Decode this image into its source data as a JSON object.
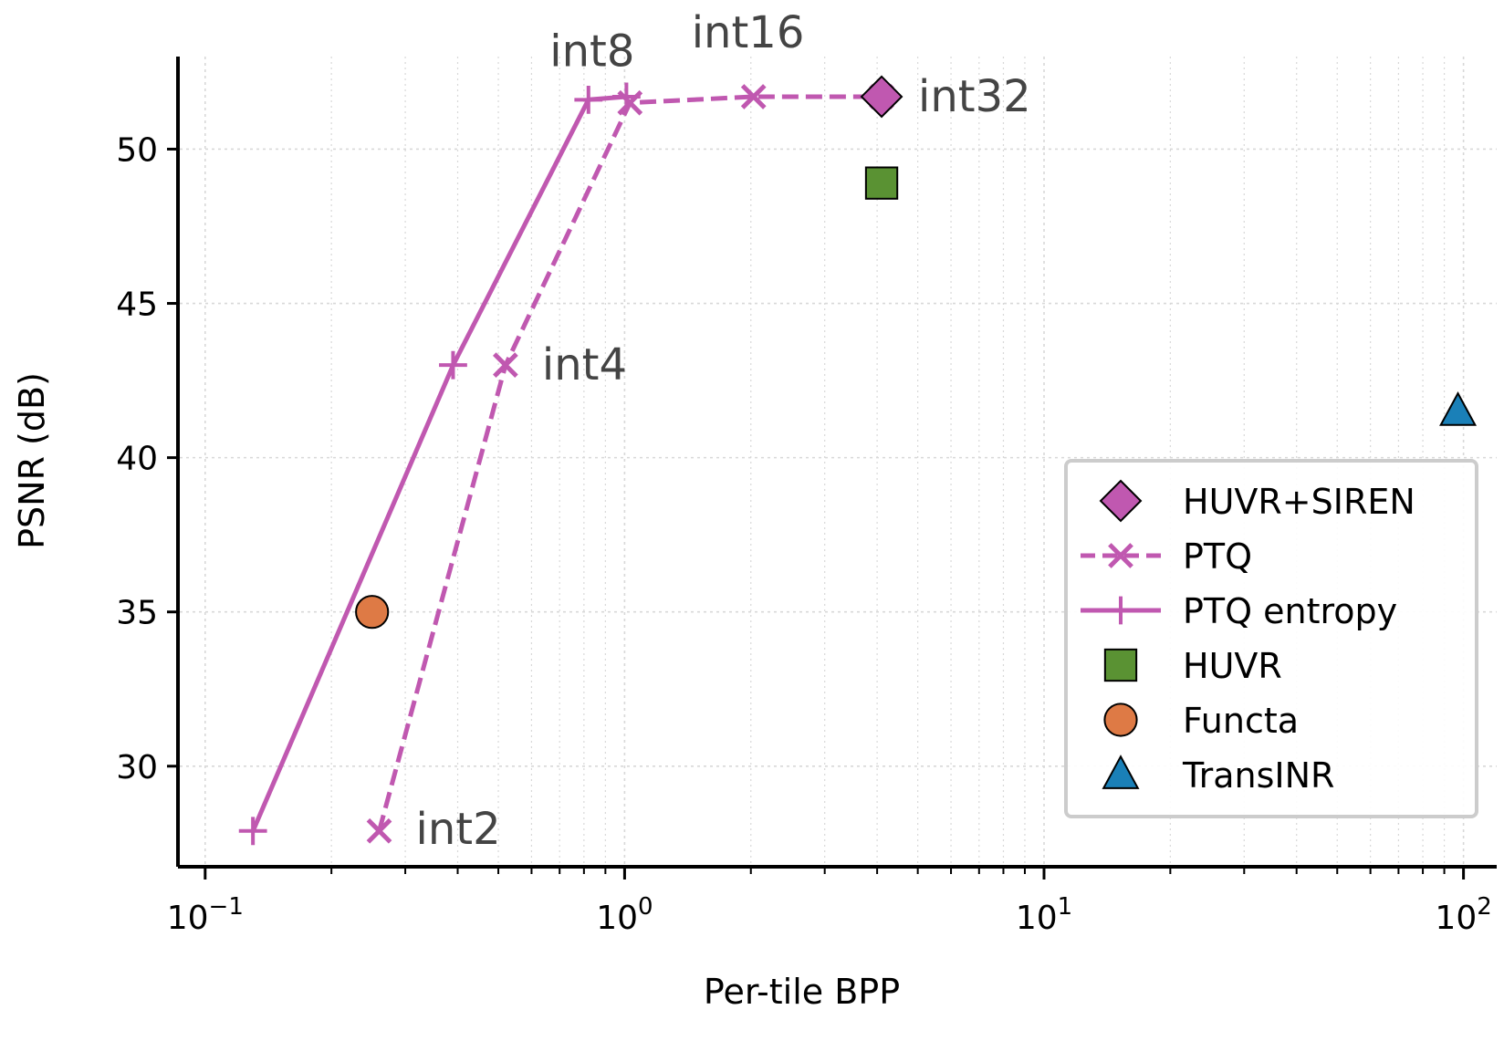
{
  "chart_data": {
    "type": "scatter",
    "xlabel": "Per-tile BPP",
    "ylabel": "PSNR (dB)",
    "xscale": "log",
    "xlim": [
      0.087,
      120
    ],
    "ylim": [
      26.8,
      53.0
    ],
    "x_ticks": [
      {
        "value": 0.1,
        "base": "10",
        "exp": "−1"
      },
      {
        "value": 1,
        "base": "10",
        "exp": "0"
      },
      {
        "value": 10,
        "base": "10",
        "exp": "1"
      },
      {
        "value": 100,
        "base": "10",
        "exp": "2"
      }
    ],
    "y_ticks": [
      30,
      35,
      40,
      45,
      50
    ],
    "grid": true,
    "legend_position": "lower-right",
    "colors": {
      "ptq": "#c058b0",
      "huvr_siren": "#c058b0",
      "huvr": "#5a9233",
      "functa": "#de7a45",
      "transinr": "#1a80b8",
      "annotation": "#444444",
      "grid": "#d8d8d8"
    },
    "series": [
      {
        "name": "HUVR+SIREN",
        "kind": "marker",
        "marker": "diamond",
        "color_key": "huvr_siren",
        "points": [
          {
            "x": 4.1,
            "y": 51.7
          }
        ]
      },
      {
        "name": "PTQ",
        "kind": "line",
        "dash": true,
        "marker": "x",
        "color_key": "ptq",
        "points": [
          {
            "x": 0.26,
            "y": 27.9
          },
          {
            "x": 0.52,
            "y": 43.0
          },
          {
            "x": 1.03,
            "y": 51.5
          },
          {
            "x": 2.03,
            "y": 51.7
          },
          {
            "x": 4.1,
            "y": 51.7
          }
        ]
      },
      {
        "name": "PTQ entropy",
        "kind": "line",
        "dash": false,
        "marker": "plus",
        "color_key": "ptq",
        "points": [
          {
            "x": 0.13,
            "y": 27.9
          },
          {
            "x": 0.39,
            "y": 43.0
          },
          {
            "x": 0.82,
            "y": 51.6
          },
          {
            "x": 1.01,
            "y": 51.7
          }
        ]
      },
      {
        "name": "HUVR",
        "kind": "marker",
        "marker": "square",
        "color_key": "huvr",
        "points": [
          {
            "x": 4.1,
            "y": 48.9
          }
        ]
      },
      {
        "name": "Functa",
        "kind": "marker",
        "marker": "circle",
        "color_key": "functa",
        "points": [
          {
            "x": 0.25,
            "y": 35.0
          }
        ]
      },
      {
        "name": "TransINR",
        "kind": "marker",
        "marker": "triangle",
        "color_key": "transinr",
        "points": [
          {
            "x": 97,
            "y": 41.5
          }
        ]
      }
    ],
    "annotations": [
      {
        "text": "int2",
        "x": 0.26,
        "y": 27.9
      },
      {
        "text": "int4",
        "x": 0.52,
        "y": 43.0
      },
      {
        "text": "int8",
        "x": 1.03,
        "y": 51.5
      },
      {
        "text": "int16",
        "x": 2.03,
        "y": 51.7
      },
      {
        "text": "int32",
        "x": 4.1,
        "y": 51.7
      }
    ]
  }
}
